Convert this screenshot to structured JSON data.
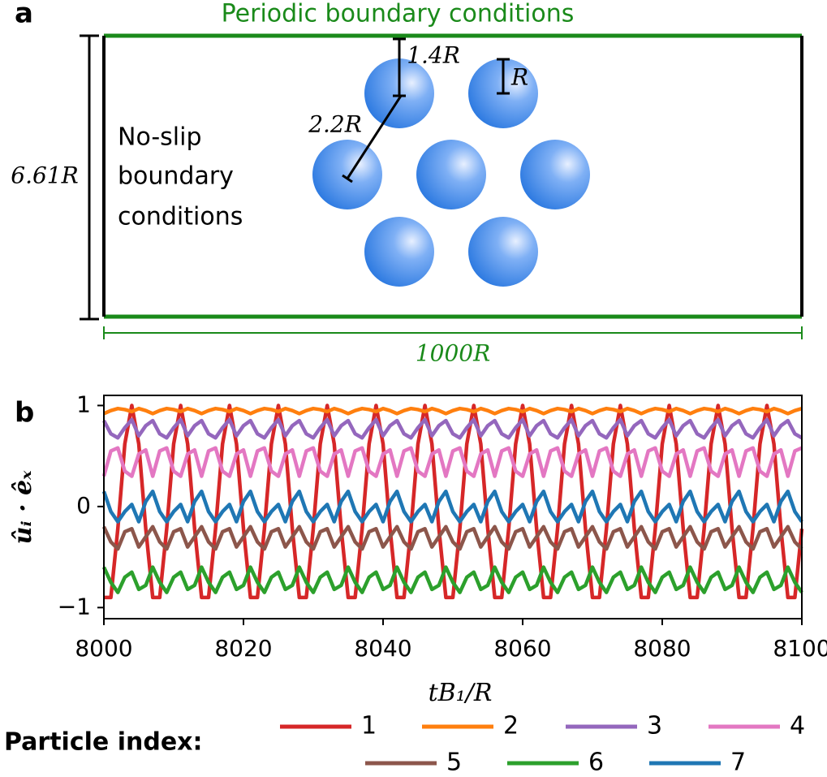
{
  "panel_a": {
    "label": "a",
    "top_label": "Periodic boundary conditions",
    "side_label": [
      "No-slip",
      "boundary",
      "conditions"
    ],
    "height_label": "6.61R",
    "width_label": "1000R",
    "gap_label": "1.4R",
    "radius_label": "R",
    "distance_label": "2.2R"
  },
  "panel_b_label": "b",
  "chart_data": {
    "type": "line",
    "xlabel": "tB₁/R",
    "ylabel": "ûᵢ · êₓ",
    "xlim": [
      8000,
      8100
    ],
    "xticks": [
      8000,
      8020,
      8040,
      8060,
      8080,
      8100
    ],
    "ylim": [
      -1.11,
      1.1
    ],
    "yticks": [
      {
        "value": -1,
        "label": "−1"
      },
      0,
      1
    ],
    "legend_title": "Particle index:",
    "x": [
      8000,
      8001,
      8002,
      8003,
      8004,
      8005,
      8006,
      8007,
      8008,
      8009,
      8010,
      8011,
      8012,
      8013,
      8014,
      8015,
      8016,
      8017,
      8018,
      8019,
      8020,
      8021,
      8022,
      8023,
      8024,
      8025,
      8026,
      8027,
      8028,
      8029,
      8030,
      8031,
      8032,
      8033,
      8034,
      8035,
      8036,
      8037,
      8038,
      8039,
      8040,
      8041,
      8042,
      8043,
      8044,
      8045,
      8046,
      8047,
      8048,
      8049,
      8050,
      8051,
      8052,
      8053,
      8054,
      8055,
      8056,
      8057,
      8058,
      8059,
      8060,
      8061,
      8062,
      8063,
      8064,
      8065,
      8066,
      8067,
      8068,
      8069,
      8070,
      8071,
      8072,
      8073,
      8074,
      8075,
      8076,
      8077,
      8078,
      8079,
      8080,
      8081,
      8082,
      8083,
      8084,
      8085,
      8086,
      8087,
      8088,
      8089,
      8090,
      8091,
      8092,
      8093,
      8094,
      8095,
      8096,
      8097,
      8098,
      8099,
      8100
    ],
    "series": [
      {
        "name": "1",
        "color": "#d62728",
        "values": [
          -0.9,
          -0.9,
          -0.22,
          0.62,
          1,
          0.62,
          -0.22,
          -0.9,
          -0.9,
          -0.22,
          0.62,
          1,
          0.62,
          -0.22,
          -0.9,
          -0.9,
          -0.22,
          0.62,
          1,
          0.62,
          -0.22,
          -0.9,
          -0.9,
          -0.22,
          0.62,
          1,
          0.62,
          -0.22,
          -0.9,
          -0.9,
          -0.22,
          0.62,
          1,
          0.62,
          -0.22,
          -0.9,
          -0.9,
          -0.22,
          0.62,
          1,
          0.62,
          -0.22,
          -0.9,
          -0.9,
          -0.22,
          0.62,
          1,
          0.62,
          -0.22,
          -0.9,
          -0.9,
          -0.22,
          0.62,
          1,
          0.62,
          -0.22,
          -0.9,
          -0.9,
          -0.22,
          0.62,
          1,
          0.62,
          -0.22,
          -0.9,
          -0.9,
          -0.22,
          0.62,
          1,
          0.62,
          -0.22,
          -0.9,
          -0.9,
          -0.22,
          0.62,
          1,
          0.62,
          -0.22,
          -0.9,
          -0.9,
          -0.22,
          0.62,
          1,
          0.62,
          -0.22,
          -0.9,
          -0.9,
          -0.22,
          0.62,
          1,
          0.62,
          -0.22,
          -0.9,
          -0.9,
          -0.22,
          0.62,
          1,
          0.62,
          -0.22,
          -0.9,
          -0.9,
          -0.22
        ]
      },
      {
        "name": "2",
        "color": "#ff7f0e",
        "values": [
          0.92,
          0.95,
          0.97,
          0.96,
          0.94,
          0.97,
          0.95,
          0.92,
          0.95,
          0.97,
          0.96,
          0.94,
          0.97,
          0.95,
          0.92,
          0.95,
          0.97,
          0.96,
          0.94,
          0.97,
          0.95,
          0.92,
          0.95,
          0.97,
          0.96,
          0.94,
          0.97,
          0.95,
          0.92,
          0.95,
          0.97,
          0.96,
          0.94,
          0.97,
          0.95,
          0.92,
          0.95,
          0.97,
          0.96,
          0.94,
          0.97,
          0.95,
          0.92,
          0.95,
          0.97,
          0.96,
          0.94,
          0.97,
          0.95,
          0.92,
          0.95,
          0.97,
          0.96,
          0.94,
          0.97,
          0.95,
          0.92,
          0.95,
          0.97,
          0.96,
          0.94,
          0.97,
          0.95,
          0.92,
          0.95,
          0.97,
          0.96,
          0.94,
          0.97,
          0.95,
          0.92,
          0.95,
          0.97,
          0.96,
          0.94,
          0.97,
          0.95,
          0.92,
          0.95,
          0.97,
          0.96,
          0.94,
          0.97,
          0.95,
          0.92,
          0.95,
          0.97,
          0.96,
          0.94,
          0.97,
          0.95,
          0.92,
          0.95,
          0.97,
          0.96,
          0.94,
          0.97,
          0.95,
          0.92,
          0.95,
          0.97
        ]
      },
      {
        "name": "3",
        "color": "#9467bd",
        "values": [
          0.85,
          0.72,
          0.68,
          0.78,
          0.86,
          0.7,
          0.8,
          0.85,
          0.72,
          0.68,
          0.78,
          0.86,
          0.7,
          0.8,
          0.85,
          0.72,
          0.68,
          0.78,
          0.86,
          0.7,
          0.8,
          0.85,
          0.72,
          0.68,
          0.78,
          0.86,
          0.7,
          0.8,
          0.85,
          0.72,
          0.68,
          0.78,
          0.86,
          0.7,
          0.8,
          0.85,
          0.72,
          0.68,
          0.78,
          0.86,
          0.7,
          0.8,
          0.85,
          0.72,
          0.68,
          0.78,
          0.86,
          0.7,
          0.8,
          0.85,
          0.72,
          0.68,
          0.78,
          0.86,
          0.7,
          0.8,
          0.85,
          0.72,
          0.68,
          0.78,
          0.86,
          0.7,
          0.8,
          0.85,
          0.72,
          0.68,
          0.78,
          0.86,
          0.7,
          0.8,
          0.85,
          0.72,
          0.68,
          0.78,
          0.86,
          0.7,
          0.8,
          0.85,
          0.72,
          0.68,
          0.78,
          0.86,
          0.7,
          0.8,
          0.85,
          0.72,
          0.68,
          0.78,
          0.86,
          0.7,
          0.8,
          0.85,
          0.72,
          0.68,
          0.78,
          0.86,
          0.7,
          0.8,
          0.85,
          0.72,
          0.68
        ]
      },
      {
        "name": "4",
        "color": "#e377c2",
        "values": [
          0.3,
          0.55,
          0.58,
          0.35,
          0.3,
          0.52,
          0.56,
          0.3,
          0.55,
          0.58,
          0.35,
          0.3,
          0.52,
          0.56,
          0.3,
          0.55,
          0.58,
          0.35,
          0.3,
          0.52,
          0.56,
          0.3,
          0.55,
          0.58,
          0.35,
          0.3,
          0.52,
          0.56,
          0.3,
          0.55,
          0.58,
          0.35,
          0.3,
          0.52,
          0.56,
          0.3,
          0.55,
          0.58,
          0.35,
          0.3,
          0.52,
          0.56,
          0.3,
          0.55,
          0.58,
          0.35,
          0.3,
          0.52,
          0.56,
          0.3,
          0.55,
          0.58,
          0.35,
          0.3,
          0.52,
          0.56,
          0.3,
          0.55,
          0.58,
          0.35,
          0.3,
          0.52,
          0.56,
          0.3,
          0.55,
          0.58,
          0.35,
          0.3,
          0.52,
          0.56,
          0.3,
          0.55,
          0.58,
          0.35,
          0.3,
          0.52,
          0.56,
          0.3,
          0.55,
          0.58,
          0.35,
          0.3,
          0.52,
          0.56,
          0.3,
          0.55,
          0.58,
          0.35,
          0.3,
          0.52,
          0.56,
          0.3,
          0.55,
          0.58,
          0.35,
          0.3,
          0.52,
          0.56,
          0.3,
          0.55,
          0.58
        ]
      },
      {
        "name": "5",
        "color": "#8c564b",
        "values": [
          -0.2,
          -0.35,
          -0.42,
          -0.25,
          -0.22,
          -0.4,
          -0.3,
          -0.2,
          -0.35,
          -0.42,
          -0.25,
          -0.22,
          -0.4,
          -0.3,
          -0.2,
          -0.35,
          -0.42,
          -0.25,
          -0.22,
          -0.4,
          -0.3,
          -0.2,
          -0.35,
          -0.42,
          -0.25,
          -0.22,
          -0.4,
          -0.3,
          -0.2,
          -0.35,
          -0.42,
          -0.25,
          -0.22,
          -0.4,
          -0.3,
          -0.2,
          -0.35,
          -0.42,
          -0.25,
          -0.22,
          -0.4,
          -0.3,
          -0.2,
          -0.35,
          -0.42,
          -0.25,
          -0.22,
          -0.4,
          -0.3,
          -0.2,
          -0.35,
          -0.42,
          -0.25,
          -0.22,
          -0.4,
          -0.3,
          -0.2,
          -0.35,
          -0.42,
          -0.25,
          -0.22,
          -0.4,
          -0.3,
          -0.2,
          -0.35,
          -0.42,
          -0.25,
          -0.22,
          -0.4,
          -0.3,
          -0.2,
          -0.35,
          -0.42,
          -0.25,
          -0.22,
          -0.4,
          -0.3,
          -0.2,
          -0.35,
          -0.42,
          -0.25,
          -0.22,
          -0.4,
          -0.3,
          -0.2,
          -0.35,
          -0.42,
          -0.25,
          -0.22,
          -0.4,
          -0.3,
          -0.2,
          -0.35,
          -0.42,
          -0.25,
          -0.22,
          -0.4,
          -0.3,
          -0.2,
          -0.35,
          -0.42
        ]
      },
      {
        "name": "6",
        "color": "#2ca02c",
        "values": [
          -0.6,
          -0.75,
          -0.85,
          -0.7,
          -0.65,
          -0.82,
          -0.78,
          -0.6,
          -0.75,
          -0.85,
          -0.7,
          -0.65,
          -0.82,
          -0.78,
          -0.6,
          -0.75,
          -0.85,
          -0.7,
          -0.65,
          -0.82,
          -0.78,
          -0.6,
          -0.75,
          -0.85,
          -0.7,
          -0.65,
          -0.82,
          -0.78,
          -0.6,
          -0.75,
          -0.85,
          -0.7,
          -0.65,
          -0.82,
          -0.78,
          -0.6,
          -0.75,
          -0.85,
          -0.7,
          -0.65,
          -0.82,
          -0.78,
          -0.6,
          -0.75,
          -0.85,
          -0.7,
          -0.65,
          -0.82,
          -0.78,
          -0.6,
          -0.75,
          -0.85,
          -0.7,
          -0.65,
          -0.82,
          -0.78,
          -0.6,
          -0.75,
          -0.85,
          -0.7,
          -0.65,
          -0.82,
          -0.78,
          -0.6,
          -0.75,
          -0.85,
          -0.7,
          -0.65,
          -0.82,
          -0.78,
          -0.6,
          -0.75,
          -0.85,
          -0.7,
          -0.65,
          -0.82,
          -0.78,
          -0.6,
          -0.75,
          -0.85,
          -0.7,
          -0.65,
          -0.82,
          -0.78,
          -0.6,
          -0.75,
          -0.85,
          -0.7,
          -0.65,
          -0.82,
          -0.78,
          -0.6,
          -0.75,
          -0.85,
          -0.7,
          -0.65,
          -0.82,
          -0.78,
          -0.6,
          -0.75,
          -0.85
        ]
      },
      {
        "name": "7",
        "color": "#1f77b4",
        "values": [
          0.15,
          -0.05,
          -0.15,
          -0.05,
          0.02,
          -0.15,
          0.05,
          0.15,
          -0.05,
          -0.15,
          -0.05,
          0.02,
          -0.15,
          0.05,
          0.15,
          -0.05,
          -0.15,
          -0.05,
          0.02,
          -0.15,
          0.05,
          0.15,
          -0.05,
          -0.15,
          -0.05,
          0.02,
          -0.15,
          0.05,
          0.15,
          -0.05,
          -0.15,
          -0.05,
          0.02,
          -0.15,
          0.05,
          0.15,
          -0.05,
          -0.15,
          -0.05,
          0.02,
          -0.15,
          0.05,
          0.15,
          -0.05,
          -0.15,
          -0.05,
          0.02,
          -0.15,
          0.05,
          0.15,
          -0.05,
          -0.15,
          -0.05,
          0.02,
          -0.15,
          0.05,
          0.15,
          -0.05,
          -0.15,
          -0.05,
          0.02,
          -0.15,
          0.05,
          0.15,
          -0.05,
          -0.15,
          -0.05,
          0.02,
          -0.15,
          0.05,
          0.15,
          -0.05,
          -0.15,
          -0.05,
          0.02,
          -0.15,
          0.05,
          0.15,
          -0.05,
          -0.15,
          -0.05,
          0.02,
          -0.15,
          0.05,
          0.15,
          -0.05,
          -0.15,
          -0.05,
          0.02,
          -0.15,
          0.05,
          0.15,
          -0.05,
          -0.15,
          -0.05,
          0.02,
          -0.15,
          0.05,
          0.15,
          -0.05,
          -0.15
        ]
      }
    ]
  }
}
